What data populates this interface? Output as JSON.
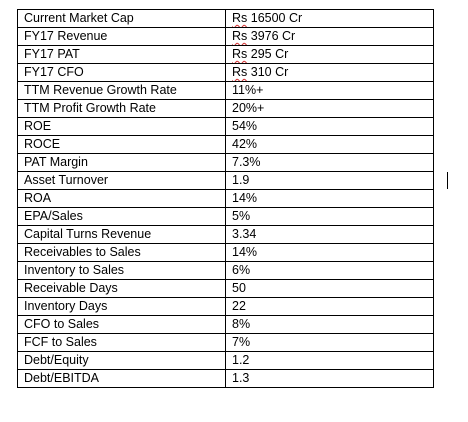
{
  "rows": [
    {
      "label": "Current Market Cap",
      "currency": "Rs",
      "value": " 16500 Cr"
    },
    {
      "label": "FY17 Revenue",
      "currency": "Rs",
      "value": " 3976 Cr"
    },
    {
      "label": "FY17 PAT",
      "currency": "Rs",
      "value": " 295 Cr"
    },
    {
      "label": "FY17 CFO",
      "currency": "Rs",
      "value": " 310 Cr"
    },
    {
      "label": "TTM Revenue Growth Rate",
      "value": "11%+"
    },
    {
      "label": "TTM Profit Growth Rate",
      "value": "20%+"
    },
    {
      "label": "ROE",
      "value": "54%"
    },
    {
      "label": "ROCE",
      "value": "42%"
    },
    {
      "label": "PAT Margin",
      "value": "7.3%"
    },
    {
      "label": "Asset Turnover",
      "value": "1.9"
    },
    {
      "label": "ROA",
      "value": "14%"
    },
    {
      "label": "EPA/Sales",
      "value": "5%"
    },
    {
      "label": "Capital Turns Revenue",
      "value": "3.34"
    },
    {
      "label": "Receivables to Sales",
      "value": "14%"
    },
    {
      "label": "Inventory to Sales",
      "value": "6%"
    },
    {
      "label": "Receivable Days",
      "value": "50"
    },
    {
      "label": "Inventory Days",
      "value": "22"
    },
    {
      "label": "CFO to Sales",
      "value": "8%"
    },
    {
      "label": "FCF to Sales",
      "value": "7%"
    },
    {
      "label": "Debt/Equity",
      "value": "1.2"
    },
    {
      "label": "Debt/EBITDA",
      "value": "1.3"
    }
  ]
}
